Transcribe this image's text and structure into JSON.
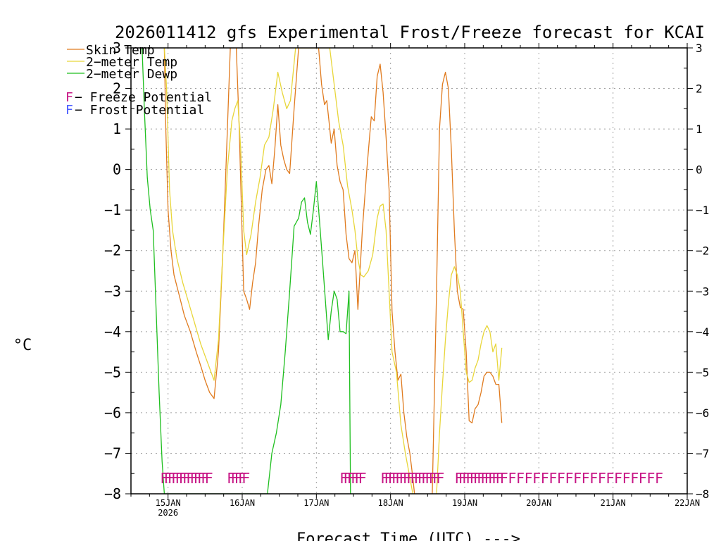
{
  "chart_data": {
    "type": "line",
    "title": "2026011412 gfs Experimental Frost/Freeze forecast for KCAI",
    "xlabel": "Forecast Time (UTC) --->",
    "ylabel": "°C",
    "ylim": [
      -8,
      3
    ],
    "xlim": [
      14.5,
      22.0
    ],
    "yticks": [
      -8,
      -7,
      -6,
      -5,
      -4,
      -3,
      -2,
      -1,
      0,
      1,
      2,
      3
    ],
    "ytick_labels": [
      "−8",
      "−7",
      "−6",
      "−5",
      "−4",
      "−3",
      "−2",
      "−1",
      "0",
      "1",
      "2",
      "3"
    ],
    "xticks": [
      {
        "x": 15,
        "label": "15JAN",
        "sub": "2026"
      },
      {
        "x": 16,
        "label": "16JAN",
        "sub": ""
      },
      {
        "x": 17,
        "label": "17JAN",
        "sub": ""
      },
      {
        "x": 18,
        "label": "18JAN",
        "sub": ""
      },
      {
        "x": 19,
        "label": "19JAN",
        "sub": ""
      },
      {
        "x": 20,
        "label": "20JAN",
        "sub": ""
      },
      {
        "x": 21,
        "label": "21JAN",
        "sub": ""
      },
      {
        "x": 22,
        "label": "22JAN",
        "sub": ""
      }
    ],
    "grid": true,
    "legend": [
      {
        "label": "Skin Temp",
        "color": "#e07b1f"
      },
      {
        "label": "2−meter Temp",
        "color": "#e8d63a"
      },
      {
        "label": "2−meter Dewp",
        "color": "#1fbf1f"
      }
    ],
    "potential_legend": [
      {
        "symbol": "F",
        "label": " − Freeze Potential",
        "color": "#c71585"
      },
      {
        "symbol": "F",
        "label": " − Frost Potential",
        "color": "#4a5cff"
      }
    ],
    "series": [
      {
        "name": "Skin Temp",
        "color": "#e07b1f",
        "x": [
          14.95,
          14.97,
          15.0,
          15.04,
          15.08,
          15.15,
          15.22,
          15.3,
          15.38,
          15.45,
          15.5,
          15.56,
          15.62,
          15.68,
          15.74,
          15.79,
          15.84,
          15.88,
          15.92,
          15.96,
          16.02,
          16.06,
          16.1,
          16.14,
          16.18,
          16.22,
          16.27,
          16.32,
          16.36,
          16.4,
          16.44,
          16.48,
          16.52,
          16.56,
          16.6,
          16.64,
          16.7,
          16.76,
          16.82,
          16.88,
          16.93,
          16.98,
          17.03,
          17.07,
          17.11,
          17.14,
          17.17,
          17.2,
          17.24,
          17.28,
          17.32,
          17.36,
          17.4,
          17.44,
          17.48,
          17.52,
          17.56,
          17.62,
          17.68,
          17.74,
          17.78,
          17.82,
          17.86,
          17.9,
          17.94,
          17.98,
          18.02,
          18.06,
          18.1,
          18.14,
          18.18,
          18.22,
          18.26,
          18.3,
          18.34,
          18.38,
          18.44,
          18.5,
          18.56,
          18.62,
          18.66,
          18.7,
          18.74,
          18.78,
          18.82,
          18.86,
          18.9,
          18.94,
          18.98,
          19.02,
          19.06,
          19.1,
          19.14,
          19.18,
          19.22,
          19.26,
          19.3,
          19.34,
          19.38,
          19.42,
          19.46,
          19.5
        ],
        "y": [
          3.0,
          1.0,
          -1.0,
          -2.0,
          -2.6,
          -3.1,
          -3.6,
          -4.0,
          -4.5,
          -4.9,
          -5.2,
          -5.5,
          -5.65,
          -4.5,
          -2.0,
          0.5,
          3.0,
          3.0,
          3.0,
          1.0,
          -3.0,
          -3.2,
          -3.45,
          -2.8,
          -2.3,
          -1.4,
          -0.5,
          0.0,
          0.1,
          -0.35,
          0.5,
          1.6,
          0.6,
          0.25,
          0.0,
          -0.1,
          1.5,
          3.0,
          3.0,
          3.0,
          3.0,
          3.0,
          3.0,
          2.1,
          1.6,
          1.7,
          1.2,
          0.65,
          1.0,
          0.1,
          -0.3,
          -0.5,
          -1.6,
          -2.2,
          -2.3,
          -2.0,
          -3.45,
          -1.5,
          0.0,
          1.3,
          1.2,
          2.3,
          2.6,
          1.9,
          0.8,
          -0.5,
          -3.5,
          -4.5,
          -5.2,
          -5.05,
          -6.0,
          -6.6,
          -7.0,
          -7.6,
          -8.3,
          -8.5,
          -8.5,
          -8.5,
          -8.2,
          -3.0,
          1.0,
          2.1,
          2.4,
          2.0,
          0.5,
          -1.5,
          -3.0,
          -3.4,
          -3.45,
          -4.5,
          -6.2,
          -6.25,
          -5.9,
          -5.8,
          -5.5,
          -5.1,
          -5.0,
          -5.0,
          -5.1,
          -5.3,
          -5.3,
          -6.25
        ]
      },
      {
        "name": "2-meter Temp",
        "color": "#e8d63a",
        "x": [
          14.95,
          14.98,
          15.02,
          15.06,
          15.12,
          15.2,
          15.28,
          15.36,
          15.44,
          15.5,
          15.56,
          15.62,
          15.68,
          15.74,
          15.8,
          15.86,
          15.9,
          15.94,
          15.98,
          16.02,
          16.06,
          16.12,
          16.18,
          16.24,
          16.3,
          16.36,
          16.42,
          16.48,
          16.54,
          16.6,
          16.65,
          16.72,
          16.8,
          16.9,
          17.0,
          17.06,
          17.12,
          17.18,
          17.24,
          17.3,
          17.36,
          17.42,
          17.48,
          17.52,
          17.56,
          17.6,
          17.64,
          17.7,
          17.76,
          17.82,
          17.86,
          17.9,
          17.94,
          17.98,
          18.02,
          18.08,
          18.14,
          18.2,
          18.26,
          18.32,
          18.38,
          18.44,
          18.5,
          18.56,
          18.62,
          18.66,
          18.7,
          18.74,
          18.78,
          18.82,
          18.86,
          18.9,
          18.94,
          18.98,
          19.02,
          19.06,
          19.1,
          19.14,
          19.18,
          19.22,
          19.26,
          19.3,
          19.34,
          19.38,
          19.42,
          19.46,
          19.5
        ],
        "y": [
          3.0,
          2.0,
          -0.5,
          -1.5,
          -2.2,
          -2.8,
          -3.3,
          -3.8,
          -4.3,
          -4.6,
          -4.9,
          -5.2,
          -4.2,
          -2.0,
          0.0,
          1.2,
          1.5,
          1.7,
          0.5,
          -1.5,
          -2.1,
          -1.6,
          -0.8,
          -0.2,
          0.6,
          0.8,
          1.5,
          2.4,
          1.9,
          1.5,
          1.7,
          3.0,
          3.0,
          3.0,
          3.0,
          3.0,
          3.0,
          3.0,
          2.1,
          1.2,
          0.6,
          -0.4,
          -1.0,
          -1.5,
          -2.2,
          -2.6,
          -2.65,
          -2.5,
          -2.1,
          -1.2,
          -0.9,
          -0.85,
          -1.5,
          -3.0,
          -4.5,
          -5.0,
          -6.3,
          -7.0,
          -7.6,
          -8.2,
          -8.5,
          -8.5,
          -8.5,
          -8.5,
          -8.0,
          -6.5,
          -5.3,
          -4.2,
          -3.3,
          -2.6,
          -2.4,
          -2.6,
          -3.0,
          -4.0,
          -5.0,
          -5.25,
          -5.2,
          -4.9,
          -4.7,
          -4.3,
          -4.0,
          -3.85,
          -4.0,
          -4.5,
          -4.3,
          -5.2,
          -4.4
        ]
      },
      {
        "name": "2-meter Dewp",
        "color": "#1fbf1f",
        "x": [
          14.65,
          14.68,
          14.72,
          14.76,
          14.8,
          14.84,
          14.88,
          14.92,
          14.95,
          16.34,
          16.4,
          16.46,
          16.52,
          16.58,
          16.64,
          16.7,
          16.76,
          16.8,
          16.84,
          16.88,
          16.92,
          16.96,
          17.0,
          17.04,
          17.08,
          17.12,
          17.16,
          17.2,
          17.24,
          17.28,
          17.32,
          17.36,
          17.4,
          17.44,
          17.46
        ],
        "y": [
          3.0,
          1.5,
          -0.2,
          -1.0,
          -1.5,
          -3.5,
          -5.5,
          -7.2,
          -8.0,
          -8.0,
          -7.0,
          -6.5,
          -5.8,
          -4.5,
          -3.0,
          -1.4,
          -1.2,
          -0.8,
          -0.7,
          -1.3,
          -1.6,
          -1.0,
          -0.3,
          -1.2,
          -2.2,
          -3.2,
          -4.2,
          -3.5,
          -3.0,
          -3.2,
          -4.0,
          -4.0,
          -4.05,
          -3.0,
          -8.0
        ]
      }
    ],
    "freeze_potential": {
      "symbol": "F",
      "color": "#c71585",
      "y": -7.55,
      "times": [
        14.95,
        15.0,
        15.05,
        15.1,
        15.15,
        15.2,
        15.25,
        15.3,
        15.35,
        15.4,
        15.45,
        15.5,
        15.55,
        15.85,
        15.9,
        15.95,
        16.0,
        16.05,
        17.37,
        17.42,
        17.47,
        17.52,
        17.57,
        17.62,
        17.92,
        17.97,
        18.02,
        18.07,
        18.12,
        18.17,
        18.22,
        18.27,
        18.32,
        18.37,
        18.42,
        18.47,
        18.52,
        18.57,
        18.62,
        18.67,
        18.92,
        18.97,
        19.02,
        19.07,
        19.12,
        19.17,
        19.22,
        19.27,
        19.32,
        19.37,
        19.42,
        19.47,
        19.53,
        19.64,
        19.75,
        19.86,
        19.97,
        20.08,
        20.19,
        20.3,
        20.41,
        20.52,
        20.63,
        20.74,
        20.85,
        20.96,
        21.07,
        21.18,
        21.29,
        21.4,
        21.51,
        21.62
      ]
    }
  }
}
